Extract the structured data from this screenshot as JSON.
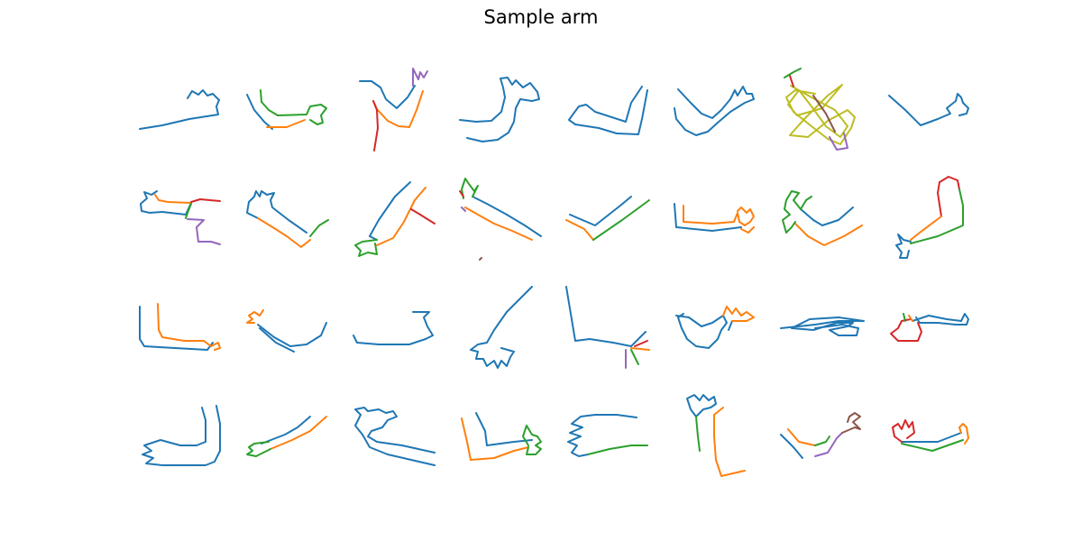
{
  "title": "Sample arm",
  "grid": {
    "rows": 4,
    "cols": 8
  },
  "palette": {
    "blue": "#1f77b4",
    "orange": "#ff7f0e",
    "green": "#2ca02c",
    "red": "#d62728",
    "purple": "#9467bd",
    "brown": "#8c564b",
    "olive": "#bcbd22"
  }
}
